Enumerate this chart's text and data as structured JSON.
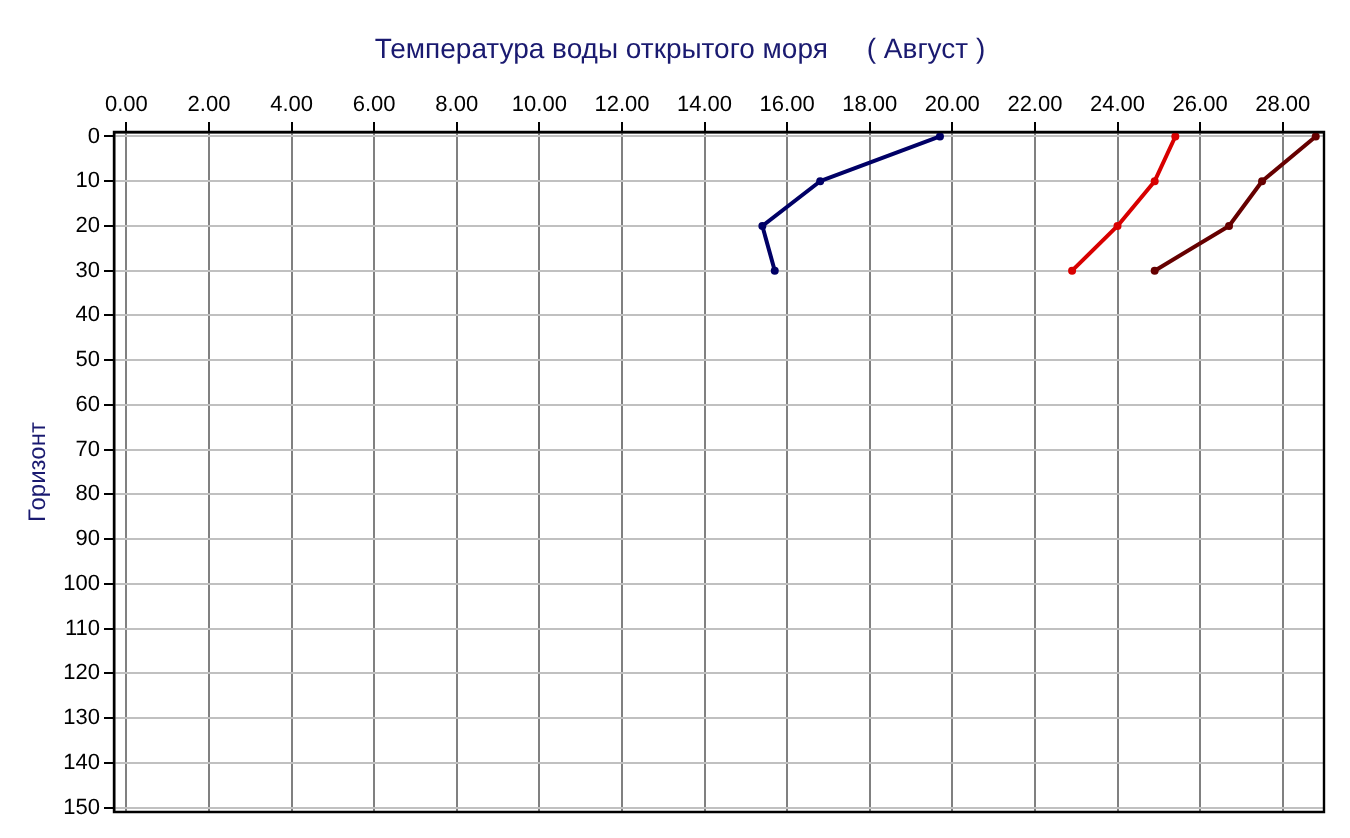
{
  "chart_data": {
    "type": "line",
    "title": "Температура воды открытого моря     ( Август )",
    "ylabel": "Горизонт",
    "xlim": [
      -0.3,
      29
    ],
    "xticks": [
      {
        "value": 0,
        "label": "0.00"
      },
      {
        "value": 2,
        "label": "2.00"
      },
      {
        "value": 4,
        "label": "4.00"
      },
      {
        "value": 6,
        "label": "6.00"
      },
      {
        "value": 8,
        "label": "8.00"
      },
      {
        "value": 10,
        "label": "10.00"
      },
      {
        "value": 12,
        "label": "12.00"
      },
      {
        "value": 14,
        "label": "14.00"
      },
      {
        "value": 16,
        "label": "16.00"
      },
      {
        "value": 18,
        "label": "18.00"
      },
      {
        "value": 20,
        "label": "20.00"
      },
      {
        "value": 22,
        "label": "22.00"
      },
      {
        "value": 24,
        "label": "24.00"
      },
      {
        "value": 26,
        "label": "26.00"
      },
      {
        "value": 28,
        "label": "28.00"
      }
    ],
    "ylim": [
      151,
      -1
    ],
    "yticks": [
      0,
      10,
      20,
      30,
      40,
      50,
      60,
      70,
      80,
      90,
      100,
      110,
      120,
      130,
      140,
      150
    ],
    "grid": true,
    "marker": "circle",
    "series": [
      {
        "color": "#000066",
        "x": [
          19.7,
          16.8,
          15.4,
          15.7
        ],
        "values": [
          0,
          10,
          20,
          30
        ]
      },
      {
        "color": "#d80000",
        "x": [
          25.4,
          24.9,
          24.0,
          22.9
        ],
        "values": [
          0,
          10,
          20,
          30
        ]
      },
      {
        "color": "#660000",
        "x": [
          28.8,
          27.5,
          26.7,
          24.9
        ],
        "values": [
          0,
          10,
          20,
          30
        ]
      }
    ]
  }
}
